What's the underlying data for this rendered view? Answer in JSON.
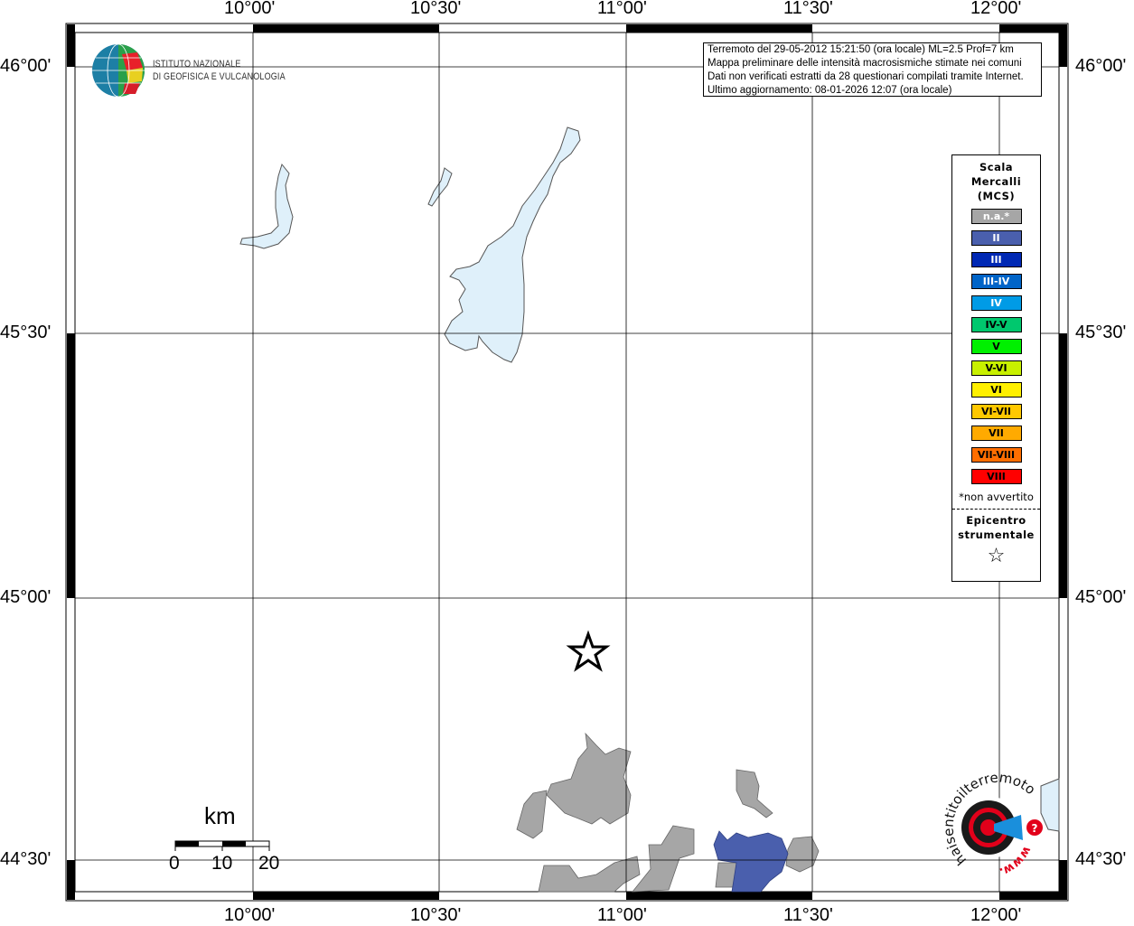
{
  "map": {
    "lon_ticks": [
      "10°00'",
      "10°30'",
      "11°00'",
      "11°30'",
      "12°00'"
    ],
    "lat_ticks": [
      "46°00'",
      "45°30'",
      "45°00'",
      "44°30'"
    ],
    "colors": {
      "lake": "#dff0fa",
      "na": "#a6a6a6",
      "II": "#4a5fad"
    }
  },
  "logo": {
    "line1": "ISTITUTO NAZIONALE",
    "line2": "DI GEOFISICA E VULCANOLOGIA"
  },
  "info": {
    "lines": [
      "Terremoto del 29-05-2012 15:21:50 (ora locale) ML=2.5 Prof=7 km",
      "Mappa preliminare delle intensità macrosismiche stimate nei comuni",
      "Dati non verificati estratti da 28 questionari compilati tramite Internet.",
      "Ultimo aggiornamento: 08-01-2026 12:07 (ora locale)"
    ]
  },
  "legend": {
    "title": [
      "Scala",
      "Mercalli",
      "(MCS)"
    ],
    "items": [
      {
        "label": "n.a.*",
        "color": "#a6a6a6",
        "text": "#ffffff"
      },
      {
        "label": "II",
        "color": "#4a5fad",
        "text": "#ffffff"
      },
      {
        "label": "III",
        "color": "#0028b4",
        "text": "#ffffff"
      },
      {
        "label": "III-IV",
        "color": "#0064c8",
        "text": "#ffffff"
      },
      {
        "label": "IV",
        "color": "#009be6",
        "text": "#ffffff"
      },
      {
        "label": "IV-V",
        "color": "#00c86e",
        "text": "#000000"
      },
      {
        "label": "V",
        "color": "#00f000",
        "text": "#000000"
      },
      {
        "label": "V-VI",
        "color": "#c8f000",
        "text": "#000000"
      },
      {
        "label": "VI",
        "color": "#fff000",
        "text": "#000000"
      },
      {
        "label": "VI-VII",
        "color": "#ffc800",
        "text": "#000000"
      },
      {
        "label": "VII",
        "color": "#ffaa00",
        "text": "#000000"
      },
      {
        "label": "VII-VIII",
        "color": "#ff6e00",
        "text": "#000000"
      },
      {
        "label": "VIII",
        "color": "#ff0000",
        "text": "#000000"
      }
    ],
    "note": "*non avvertito",
    "epicenter_title": [
      "Epicentro",
      "strumentale"
    ],
    "epicenter_icon": "star-icon"
  },
  "scalebar": {
    "unit": "km",
    "labels": [
      "0",
      "10",
      "20"
    ]
  },
  "badge": {
    "text": "haisentitoilterremoto.it",
    "prefix": "www."
  }
}
